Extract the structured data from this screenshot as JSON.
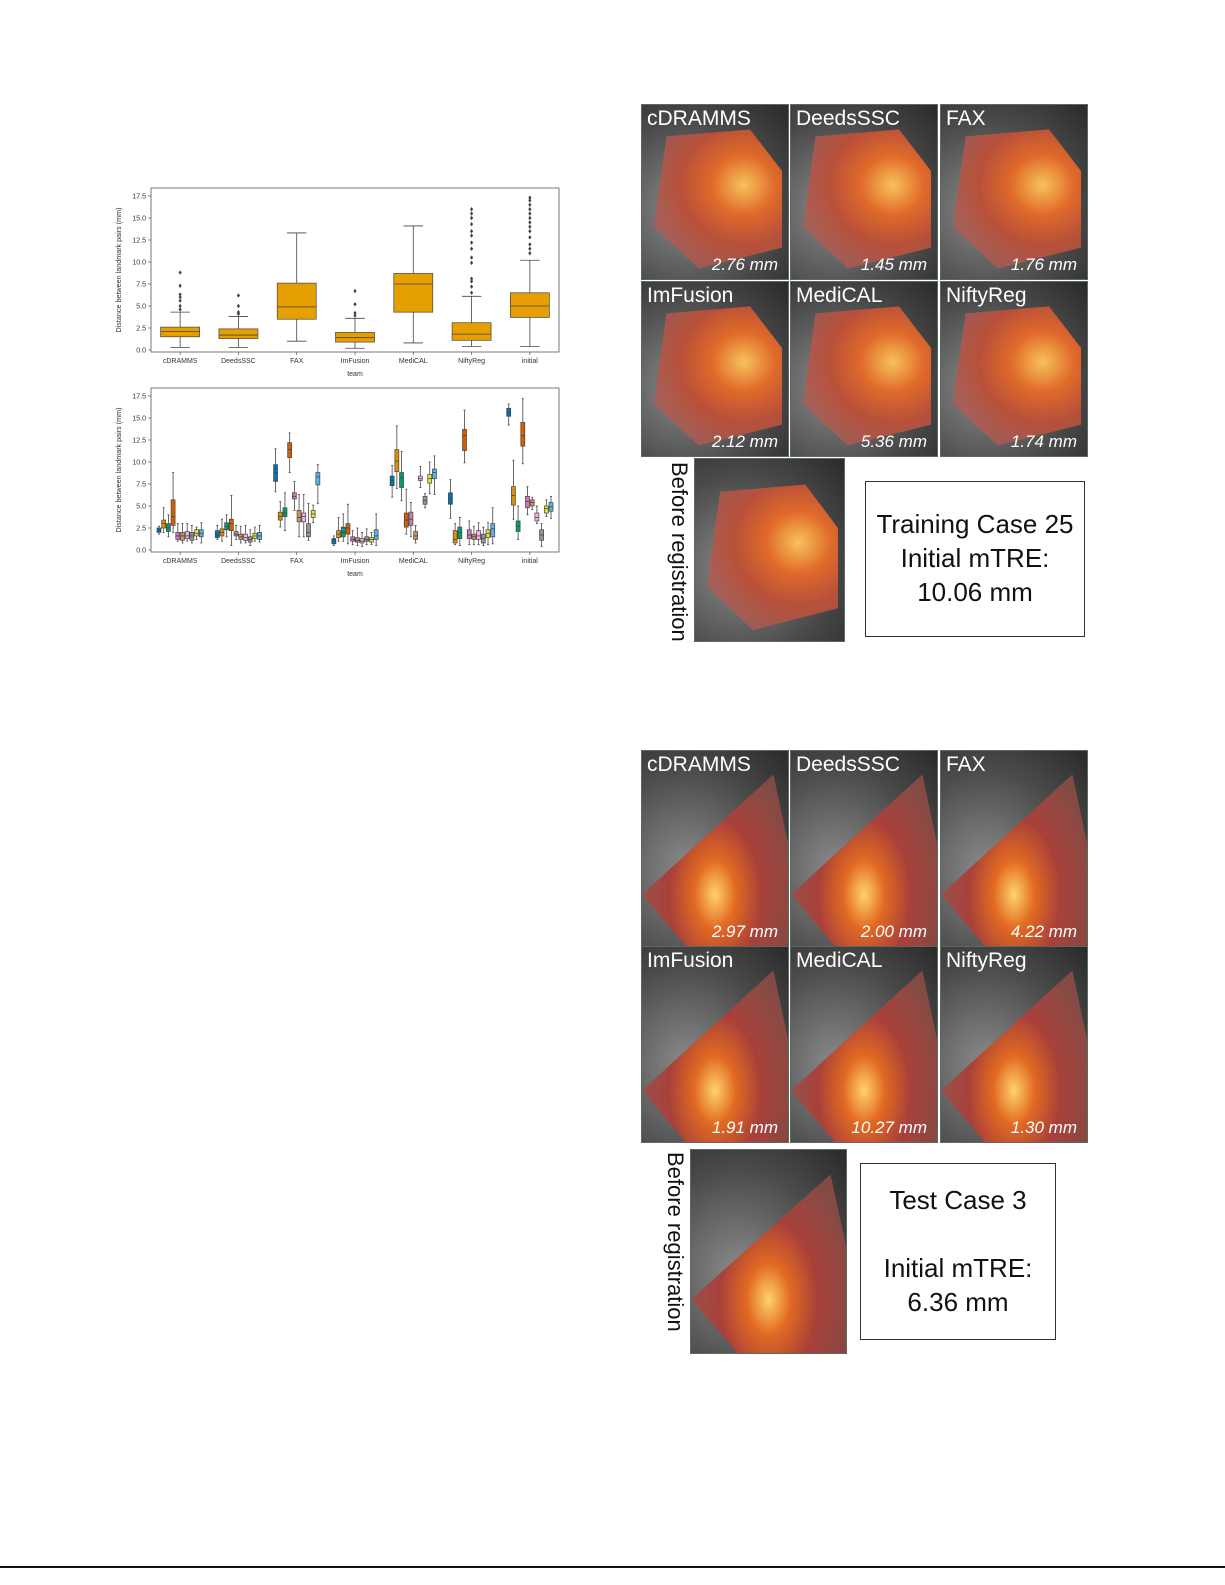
{
  "chart_data": [
    {
      "type": "box",
      "title": "",
      "xlabel": "team",
      "ylabel": "Distance between landmark pairs (mm)",
      "ylim": [
        0,
        17.5
      ],
      "yticks": [
        "0.0",
        "2.5",
        "5.0",
        "7.5",
        "10.0",
        "12.5",
        "15.0",
        "17.5"
      ],
      "categories": [
        "cDRAMMS",
        "DeedsSSC",
        "FAX",
        "ImFusion",
        "MediCAL",
        "NiftyReg",
        "initial"
      ],
      "color": "#e69f00",
      "boxes": [
        [
          0.3,
          1.5,
          2.1,
          2.6,
          4.3
        ],
        [
          0.3,
          1.3,
          1.7,
          2.4,
          3.8
        ],
        [
          1.0,
          3.5,
          4.9,
          7.6,
          13.3
        ],
        [
          0.2,
          0.9,
          1.4,
          2.0,
          3.6
        ],
        [
          0.8,
          4.3,
          7.5,
          8.7,
          14.1
        ],
        [
          0.4,
          1.1,
          1.8,
          3.1,
          6.1
        ],
        [
          0.4,
          3.7,
          5.0,
          6.5,
          10.2
        ]
      ],
      "outliers": [
        [
          4.6,
          5.0,
          5.6,
          6.0,
          6.3,
          7.3,
          8.8
        ],
        [
          4.1,
          4.3,
          5.0,
          6.2
        ],
        [],
        [
          3.9,
          4.2,
          5.2,
          6.7
        ],
        [],
        [
          6.5,
          7.2,
          7.8,
          8.1,
          9.9,
          10.5,
          11.5,
          12.2,
          13.0,
          13.5,
          14.3,
          15.0,
          15.5,
          16.0
        ],
        [
          11.0,
          11.5,
          12.0,
          12.8,
          13.5,
          14.0,
          14.5,
          15.0,
          15.5,
          16.0,
          16.5,
          17.0,
          17.3
        ]
      ]
    },
    {
      "type": "box",
      "title": "",
      "xlabel": "team",
      "ylabel": "Distance between landmark pairs (mm)",
      "ylim": [
        0,
        17.5
      ],
      "yticks": [
        "0.0",
        "2.5",
        "5.0",
        "7.5",
        "10.0",
        "12.5",
        "15.0",
        "17.5"
      ],
      "categories": [
        "cDRAMMS",
        "DeedsSSC",
        "FAX",
        "ImFusion",
        "MediCAL",
        "NiftyReg",
        "initial"
      ],
      "hue_colors": [
        "#0173b2",
        "#de8f05",
        "#029e73",
        "#d55e00",
        "#cc78bc",
        "#ca9161",
        "#fbafe4",
        "#949494",
        "#ece133",
        "#56b4e9"
      ],
      "boxes": [
        [
          [
            1.8,
            2.0,
            2.2,
            2.5,
            2.7
          ],
          [
            2,
            2.5,
            3,
            3.4,
            4.8
          ],
          [
            1.5,
            2.1,
            2.5,
            3,
            4
          ],
          [
            2,
            2.8,
            3.8,
            5.7,
            8.8
          ],
          [
            1,
            1.2,
            1.6,
            2,
            3
          ],
          [
            0.8,
            1.1,
            1.6,
            2,
            3
          ],
          [
            1,
            1.3,
            1.6,
            2.1,
            3
          ],
          [
            0.8,
            1.1,
            1.6,
            2,
            2.8
          ],
          [
            1.2,
            1.6,
            1.9,
            2.3,
            2.6
          ],
          [
            0.8,
            1.5,
            1.9,
            2.3,
            3.1
          ]
        ],
        [
          [
            1.2,
            1.4,
            1.7,
            2.2,
            2.8
          ],
          [
            1,
            1.6,
            2,
            2.4,
            3.5
          ],
          [
            1.5,
            2.3,
            2.7,
            3.1,
            4
          ],
          [
            0.5,
            2.2,
            3.0,
            3.5,
            6.2
          ],
          [
            1.2,
            1.6,
            1.8,
            2.1,
            2.8
          ],
          [
            0.8,
            1.2,
            1.5,
            1.8,
            2.7
          ],
          [
            0.8,
            1.1,
            1.4,
            1.8,
            2.8
          ],
          [
            0.5,
            0.9,
            1.2,
            1.5,
            2.3
          ],
          [
            1,
            1.3,
            1.6,
            1.9,
            2.6
          ],
          [
            0.9,
            1.2,
            1.6,
            2.0,
            2.8
          ]
        ],
        [
          [
            6.6,
            7.8,
            8.8,
            9.7,
            11.5
          ],
          [
            2.6,
            3.4,
            3.8,
            4.3,
            5.5
          ],
          [
            2.2,
            3.8,
            4.2,
            4.8,
            6.5
          ],
          [
            8.8,
            10.5,
            11.4,
            12.2,
            13.3
          ],
          [
            4.5,
            5.8,
            6.1,
            6.5,
            7.8
          ],
          [
            1.5,
            3.2,
            3.7,
            4.5,
            6.3
          ],
          [
            1.5,
            3.2,
            3.8,
            4.2,
            6.3
          ],
          [
            1.1,
            1.5,
            2.0,
            3.0,
            5.3
          ],
          [
            3.1,
            3.7,
            4.1,
            4.5,
            5.1
          ],
          [
            5.3,
            7.4,
            8.3,
            8.8,
            9.7
          ]
        ],
        [
          [
            0.5,
            0.7,
            1.1,
            1.3,
            1.6
          ],
          [
            1,
            1.4,
            1.8,
            2.2,
            3.7
          ],
          [
            1,
            1.5,
            2,
            2.6,
            4.1
          ],
          [
            0.7,
            1.8,
            2.5,
            3,
            5.2
          ],
          [
            0.6,
            1,
            1.2,
            1.5,
            2.2
          ],
          [
            0.5,
            0.9,
            1.1,
            1.4,
            2.5
          ],
          [
            0.4,
            0.8,
            1,
            1.3,
            2
          ],
          [
            0.6,
            1,
            1.2,
            1.5,
            2.4
          ],
          [
            0.6,
            0.9,
            1.2,
            1.4,
            2
          ],
          [
            0.5,
            1.2,
            1.6,
            2.3,
            4.1
          ]
        ],
        [
          [
            6,
            7.3,
            7.9,
            8.4,
            9.6
          ],
          [
            7,
            8.9,
            10.1,
            11.4,
            14.1
          ],
          [
            5.6,
            7.1,
            8.2,
            8.8,
            11.2
          ],
          [
            1.8,
            2.6,
            3.4,
            4.2,
            6.9
          ],
          [
            1.5,
            2.8,
            3.5,
            4.3,
            5.4
          ],
          [
            0.8,
            1.2,
            1.6,
            2.1,
            2.8
          ],
          [
            7.1,
            7.9,
            8.1,
            8.4,
            9.5
          ],
          [
            4.8,
            5.2,
            5.6,
            6.1,
            6.4
          ],
          [
            6.4,
            7.6,
            8.1,
            8.6,
            10
          ],
          [
            6.3,
            8.1,
            8.8,
            9.2,
            10.7
          ]
        ],
        [
          [
            3.6,
            5.2,
            5.8,
            6.5,
            8
          ],
          [
            0.6,
            0.8,
            1.2,
            2.2,
            3
          ],
          [
            0.5,
            1.3,
            2,
            2.6,
            3.7
          ],
          [
            9.9,
            11.3,
            13,
            13.7,
            15.9
          ],
          [
            0.6,
            1.3,
            1.7,
            2.3,
            3.3
          ],
          [
            0.6,
            1.2,
            1.5,
            1.8,
            2.7
          ],
          [
            0.6,
            1.2,
            1.6,
            2.2,
            3.1
          ],
          [
            0.5,
            0.8,
            1.3,
            1.8,
            2.6
          ],
          [
            0.6,
            1.4,
            1.9,
            2.3,
            3.1
          ],
          [
            0.7,
            1.5,
            2.4,
            3.0,
            4.8
          ]
        ],
        [
          [
            14.2,
            15.2,
            15.6,
            16.1,
            16.6
          ],
          [
            3.5,
            5.1,
            6.2,
            7.2,
            10.2
          ],
          [
            1.2,
            2.1,
            2.7,
            3.3,
            5
          ],
          [
            9.8,
            11.8,
            13,
            14.5,
            17.2
          ],
          [
            4,
            4.8,
            5.5,
            6.1,
            7.2
          ],
          [
            4.6,
            5,
            5.4,
            5.7,
            6
          ],
          [
            3,
            3.3,
            3.7,
            4.2,
            5
          ],
          [
            0.4,
            1.1,
            1.7,
            2.3,
            3
          ],
          [
            3.8,
            4.2,
            4.7,
            5,
            5.7
          ],
          [
            3.6,
            4.4,
            4.9,
            5.4,
            6.1
          ]
        ]
      ]
    }
  ],
  "panel_training": {
    "tiles": [
      {
        "label": "cDRAMMS",
        "mm": "2.76 mm"
      },
      {
        "label": "DeedsSSC",
        "mm": "1.45 mm"
      },
      {
        "label": "FAX",
        "mm": "1.76 mm"
      },
      {
        "label": "ImFusion",
        "mm": "2.12 mm"
      },
      {
        "label": "MediCAL",
        "mm": "5.36 mm"
      },
      {
        "label": "NiftyReg",
        "mm": "1.74 mm"
      }
    ],
    "before_label": "Before registration",
    "info": [
      "Training Case 25",
      "Initial mTRE:",
      "10.06 mm"
    ]
  },
  "panel_test": {
    "tiles": [
      {
        "label": "cDRAMMS",
        "mm": "2.97 mm"
      },
      {
        "label": "DeedsSSC",
        "mm": "2.00 mm"
      },
      {
        "label": "FAX",
        "mm": "4.22 mm"
      },
      {
        "label": "ImFusion",
        "mm": "1.91 mm"
      },
      {
        "label": "MediCAL",
        "mm": "10.27 mm"
      },
      {
        "label": "NiftyReg",
        "mm": "1.30 mm"
      }
    ],
    "before_label": "Before registration",
    "info": [
      "Test Case 3",
      "",
      "Initial mTRE:",
      "6.36 mm"
    ]
  }
}
